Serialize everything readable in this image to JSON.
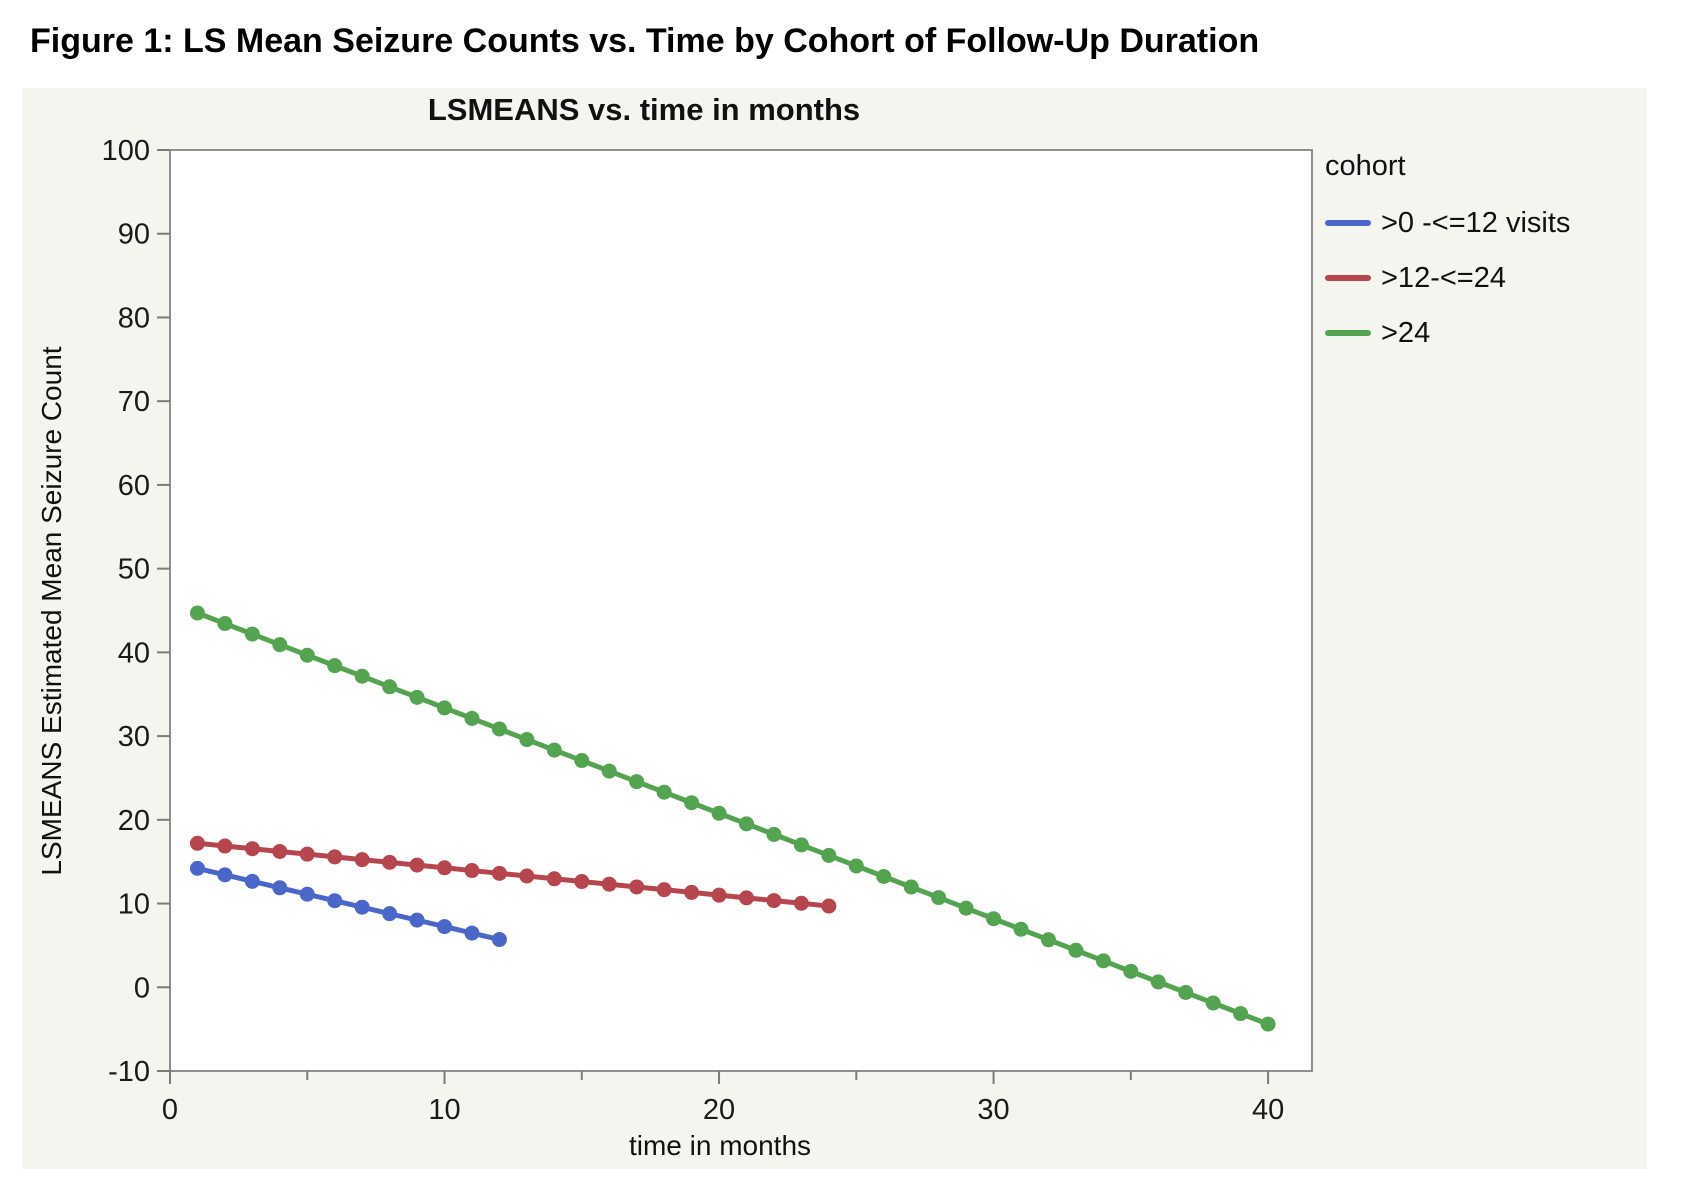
{
  "figure_title": "Figure 1: LS Mean Seizure Counts vs. Time by Cohort of Follow-Up Duration",
  "chart_data": {
    "type": "line",
    "title": "LSMEANS vs. time in months",
    "xlabel": "time in months",
    "ylabel": "LSMEANS Estimated Mean Seizure Count",
    "xlim": [
      0,
      41.6
    ],
    "ylim": [
      -10,
      100
    ],
    "x_major_ticks": [
      0,
      10,
      20,
      30,
      40
    ],
    "x_minor_ticks": [
      5,
      15,
      25,
      35
    ],
    "y_ticks": [
      -10,
      0,
      10,
      20,
      30,
      40,
      50,
      60,
      70,
      80,
      90,
      100
    ],
    "grid": false,
    "legend_title": "cohort",
    "legend_position": "right",
    "marker": "filled-circle",
    "series": [
      {
        "name": ">0 -<=12 visits",
        "color": "#4a66c8",
        "x": [
          1,
          2,
          3,
          4,
          5,
          6,
          7,
          8,
          9,
          10,
          11,
          12
        ],
        "y": [
          14.2,
          13.43,
          12.65,
          11.88,
          11.11,
          10.34,
          9.56,
          8.79,
          8.02,
          7.25,
          6.47,
          5.7
        ]
      },
      {
        "name": ">12-<=24",
        "color": "#b6464e",
        "x": [
          1,
          2,
          3,
          4,
          5,
          6,
          7,
          8,
          9,
          10,
          11,
          12,
          13,
          14,
          15,
          16,
          17,
          18,
          19,
          20,
          21,
          22,
          23,
          24
        ],
        "y": [
          17.2,
          16.87,
          16.55,
          16.22,
          15.9,
          15.57,
          15.24,
          14.92,
          14.59,
          14.27,
          13.94,
          13.61,
          13.29,
          12.96,
          12.63,
          12.31,
          11.98,
          11.66,
          11.33,
          11.0,
          10.68,
          10.35,
          10.03,
          9.7
        ]
      },
      {
        "name": ">24",
        "color": "#54a351",
        "x": [
          1,
          2,
          3,
          4,
          5,
          6,
          7,
          8,
          9,
          10,
          11,
          12,
          13,
          14,
          15,
          16,
          17,
          18,
          19,
          20,
          21,
          22,
          23,
          24,
          25,
          26,
          27,
          28,
          29,
          30,
          31,
          32,
          33,
          34,
          35,
          36,
          37,
          38,
          39,
          40
        ],
        "y": [
          44.7,
          43.44,
          42.18,
          40.92,
          39.66,
          38.41,
          37.15,
          35.89,
          34.63,
          33.37,
          32.11,
          30.85,
          29.59,
          28.33,
          27.08,
          25.82,
          24.56,
          23.3,
          22.04,
          20.78,
          19.52,
          18.26,
          17.0,
          15.75,
          14.49,
          13.23,
          11.97,
          10.71,
          9.45,
          8.19,
          6.93,
          5.67,
          4.42,
          3.16,
          1.9,
          0.64,
          -0.62,
          -1.88,
          -3.14,
          -4.4
        ]
      }
    ],
    "style": {
      "panel_background": "#f5f5f0",
      "plot_background": "#ffffff",
      "frame_color": "#909090",
      "tick_color": "#7a7a7a",
      "tick_label_color": "#1a1a1a",
      "line_width": 5,
      "marker_radius": 7.5
    }
  }
}
